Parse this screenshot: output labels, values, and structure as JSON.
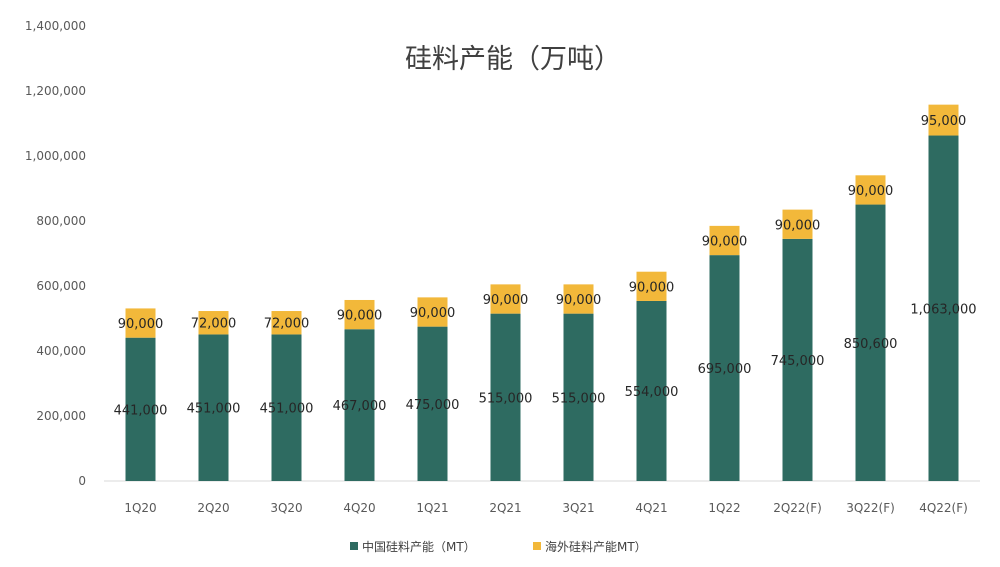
{
  "chart_data": {
    "type": "bar",
    "stacked": true,
    "title": "硅料产能（万吨）",
    "xlabel": "",
    "ylabel": "",
    "ylim": [
      0,
      1400000
    ],
    "yticks": [
      0,
      200000,
      400000,
      600000,
      800000,
      1000000,
      1200000,
      1400000
    ],
    "ytick_labels": [
      "0",
      "200,000",
      "400,000",
      "600,000",
      "800,000",
      "1,000,000",
      "1,200,000",
      "1,400,000"
    ],
    "grid": false,
    "legend_position": "bottom",
    "categories": [
      "1Q20",
      "2Q20",
      "3Q20",
      "4Q20",
      "1Q21",
      "2Q21",
      "3Q21",
      "4Q21",
      "1Q22",
      "2Q22(F)",
      "3Q22(F)",
      "4Q22(F)"
    ],
    "series": [
      {
        "name": "中国硅料产能（MT）",
        "color": "#2E6B61",
        "values": [
          441000,
          451000,
          451000,
          467000,
          475000,
          515000,
          515000,
          554000,
          695000,
          745000,
          850600,
          1063000
        ],
        "labels": [
          "441,000",
          "451,000",
          "451,000",
          "467,000",
          "475,000",
          "515,000",
          "515,000",
          "554,000",
          "695,000",
          "745,000",
          "850,600",
          "1,063,000"
        ]
      },
      {
        "name": "海外硅料产能MT）",
        "color": "#F2B83A",
        "values": [
          90000,
          72000,
          72000,
          90000,
          90000,
          90000,
          90000,
          90000,
          90000,
          90000,
          90000,
          95000
        ],
        "labels": [
          "90,000",
          "72,000",
          "72,000",
          "90,000",
          "90,000",
          "90,000",
          "90,000",
          "90,000",
          "90,000",
          "90,000",
          "90,000",
          "95,000"
        ]
      }
    ]
  }
}
